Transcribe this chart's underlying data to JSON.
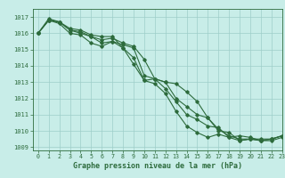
{
  "title": "",
  "xlabel": "Graphe pression niveau de la mer (hPa)",
  "ylabel": "",
  "bg_color": "#c8ede8",
  "plot_bg_color": "#c8ede8",
  "grid_color": "#9ecec9",
  "line_color": "#2d6b3c",
  "text_color": "#2d6b3c",
  "xlim": [
    -0.5,
    23
  ],
  "ylim": [
    1008.8,
    1017.5
  ],
  "yticks": [
    1009,
    1010,
    1011,
    1012,
    1013,
    1014,
    1015,
    1016,
    1017
  ],
  "xticks": [
    0,
    1,
    2,
    3,
    4,
    5,
    6,
    7,
    8,
    9,
    10,
    11,
    12,
    13,
    14,
    15,
    16,
    17,
    18,
    19,
    20,
    21,
    22,
    23
  ],
  "series": [
    [
      1016.0,
      1016.8,
      1016.7,
      1016.2,
      1016.1,
      1015.8,
      1015.6,
      1015.7,
      1015.4,
      1015.2,
      1014.4,
      1013.2,
      1013.0,
      1012.9,
      1012.4,
      1011.8,
      1010.8,
      1010.0,
      1009.9,
      1009.4,
      1009.5,
      1009.4,
      1009.5,
      1009.7
    ],
    [
      1016.0,
      1016.8,
      1016.7,
      1016.2,
      1016.0,
      1015.8,
      1015.4,
      1015.5,
      1015.3,
      1015.1,
      1013.4,
      1013.2,
      1013.0,
      1012.0,
      1011.5,
      1011.0,
      1010.8,
      1010.1,
      1009.7,
      1009.5,
      1009.5,
      1009.5,
      1009.5,
      1009.7
    ],
    [
      1016.0,
      1016.9,
      1016.7,
      1016.3,
      1016.2,
      1015.9,
      1015.8,
      1015.8,
      1015.1,
      1014.1,
      1013.1,
      1012.9,
      1012.3,
      1011.2,
      1010.3,
      1009.9,
      1009.6,
      1009.8,
      1009.6,
      1009.7,
      1009.6,
      1009.4,
      1009.5,
      1009.7
    ],
    [
      1016.0,
      1016.8,
      1016.6,
      1016.0,
      1015.9,
      1015.4,
      1015.2,
      1015.5,
      1015.1,
      1014.5,
      1013.1,
      1013.2,
      1012.6,
      1011.8,
      1011.0,
      1010.7,
      1010.3,
      1010.2,
      1009.6,
      1009.4,
      1009.5,
      1009.4,
      1009.4,
      1009.6
    ]
  ]
}
